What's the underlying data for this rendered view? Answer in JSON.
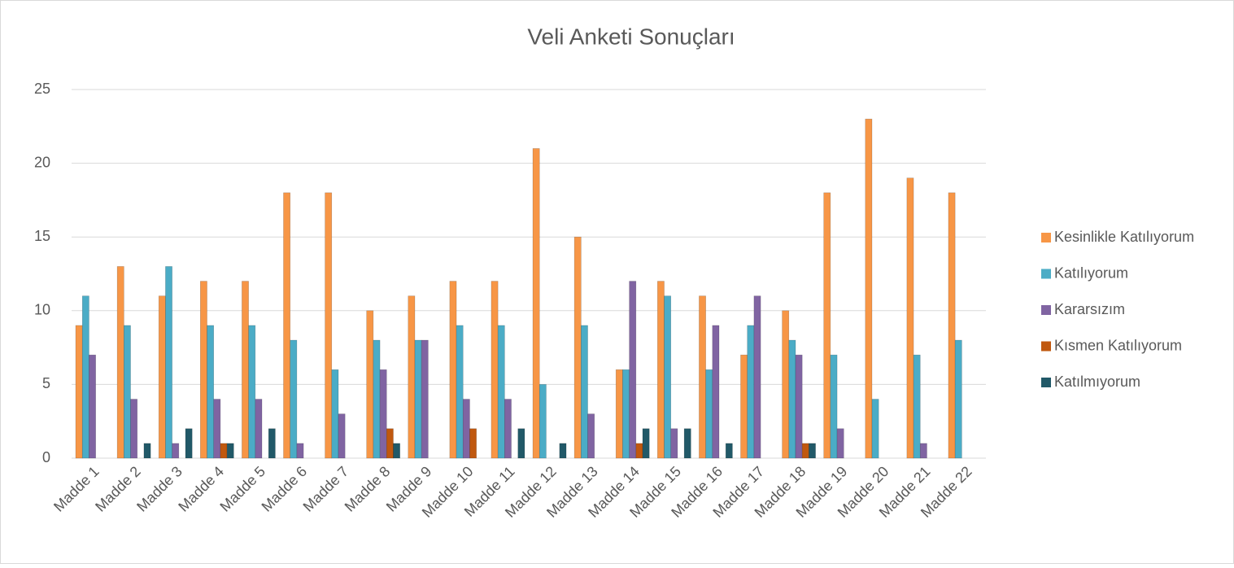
{
  "chart_data": {
    "type": "bar",
    "title": "Veli Anketi Sonuçları",
    "categories": [
      "Madde 1",
      "Madde 2",
      "Madde 3",
      "Madde 4",
      "Madde 5",
      "Madde 6",
      "Madde 7",
      "Madde 8",
      "Madde 9",
      "Madde 10",
      "Madde 11",
      "Madde 12",
      "Madde 13",
      "Madde 14",
      "Madde 15",
      "Madde 16",
      "Madde 17",
      "Madde 18",
      "Madde 19",
      "Madde 20",
      "Madde 21",
      "Madde 22"
    ],
    "series": [
      {
        "name": "Kesinlikle Katılıyorum",
        "color": "#f79646",
        "values": [
          9,
          13,
          11,
          12,
          12,
          18,
          18,
          10,
          11,
          12,
          12,
          21,
          15,
          6,
          12,
          11,
          7,
          10,
          18,
          23,
          19,
          18
        ]
      },
      {
        "name": "Katılıyorum",
        "color": "#4bacc6",
        "values": [
          11,
          9,
          13,
          9,
          9,
          8,
          6,
          8,
          8,
          9,
          9,
          5,
          9,
          6,
          11,
          6,
          9,
          8,
          7,
          4,
          7,
          8
        ]
      },
      {
        "name": "Kararsızım",
        "color": "#8064a2",
        "values": [
          7,
          4,
          1,
          4,
          4,
          1,
          3,
          6,
          8,
          4,
          4,
          0,
          3,
          12,
          2,
          9,
          11,
          7,
          2,
          0,
          1,
          0
        ]
      },
      {
        "name": "Kısmen Katılıyorum",
        "color": "#c0580f",
        "values": [
          0,
          0,
          0,
          1,
          0,
          0,
          0,
          2,
          0,
          2,
          0,
          0,
          0,
          1,
          0,
          0,
          0,
          1,
          0,
          0,
          0,
          0
        ]
      },
      {
        "name": "Katılmıyorum",
        "color": "#215968",
        "values": [
          0,
          1,
          2,
          1,
          2,
          0,
          0,
          1,
          0,
          0,
          2,
          1,
          0,
          2,
          2,
          1,
          0,
          1,
          0,
          0,
          0,
          0
        ]
      }
    ],
    "ylim": [
      0,
      25
    ],
    "yticks": [
      0,
      5,
      10,
      15,
      20,
      25
    ],
    "grid": true,
    "legend": "right"
  }
}
